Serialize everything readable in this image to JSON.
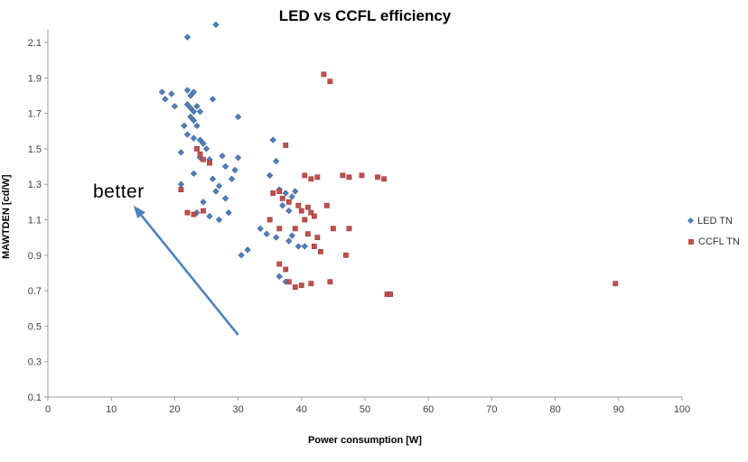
{
  "chart_data": {
    "type": "scatter",
    "title": "LED vs CCFL efficiency",
    "xlabel": "Power consumption [W]",
    "ylabel": "MAWTDEN [cd/W]",
    "xlim": [
      0,
      100
    ],
    "ylim": [
      0.1,
      2.1
    ],
    "x_ticks": [
      0,
      10,
      20,
      30,
      40,
      50,
      60,
      70,
      80,
      90,
      100
    ],
    "y_ticks": [
      0.1,
      0.3,
      0.5,
      0.7,
      0.9,
      1.1,
      1.3,
      1.5,
      1.7,
      1.9,
      2.1
    ],
    "grid": false,
    "legend_position": "right",
    "axis_color": "#9b9b9b",
    "tick_label_color": "#404040",
    "annotation": {
      "text": "better",
      "arrow_from": [
        30,
        0.45
      ],
      "arrow_to": [
        13.5,
        1.18
      ],
      "color": "#4f81bd"
    },
    "series": [
      {
        "name": "LED TN",
        "marker": "diamond",
        "color": "#4f81bd",
        "edge_color": "#385d8a",
        "points": [
          [
            26.5,
            2.2
          ],
          [
            22,
            2.13
          ],
          [
            18,
            1.82
          ],
          [
            18.5,
            1.78
          ],
          [
            19.5,
            1.81
          ],
          [
            20,
            1.74
          ],
          [
            22,
            1.83
          ],
          [
            22.5,
            1.8
          ],
          [
            23,
            1.82
          ],
          [
            26,
            1.78
          ],
          [
            22,
            1.75
          ],
          [
            22.5,
            1.73
          ],
          [
            23,
            1.71
          ],
          [
            23.5,
            1.74
          ],
          [
            24,
            1.71
          ],
          [
            22.5,
            1.68
          ],
          [
            23,
            1.66
          ],
          [
            21.5,
            1.63
          ],
          [
            23.5,
            1.63
          ],
          [
            30,
            1.68
          ],
          [
            22,
            1.58
          ],
          [
            23,
            1.56
          ],
          [
            24,
            1.55
          ],
          [
            24.5,
            1.53
          ],
          [
            21,
            1.48
          ],
          [
            25,
            1.5
          ],
          [
            25.5,
            1.44
          ],
          [
            24,
            1.45
          ],
          [
            27.5,
            1.46
          ],
          [
            23,
            1.36
          ],
          [
            26,
            1.33
          ],
          [
            29,
            1.33
          ],
          [
            28,
            1.4
          ],
          [
            30,
            1.45
          ],
          [
            29.5,
            1.38
          ],
          [
            26.5,
            1.26
          ],
          [
            27,
            1.29
          ],
          [
            21,
            1.3
          ],
          [
            24.5,
            1.2
          ],
          [
            23.5,
            1.14
          ],
          [
            25.5,
            1.12
          ],
          [
            27,
            1.1
          ],
          [
            28.5,
            1.14
          ],
          [
            28,
            1.22
          ],
          [
            35.5,
            1.55
          ],
          [
            36,
            1.43
          ],
          [
            35,
            1.35
          ],
          [
            36.5,
            1.27
          ],
          [
            37.5,
            1.25
          ],
          [
            38.5,
            1.23
          ],
          [
            37,
            1.18
          ],
          [
            38,
            1.15
          ],
          [
            39,
            1.26
          ],
          [
            33.5,
            1.05
          ],
          [
            34.5,
            1.02
          ],
          [
            36,
            1.0
          ],
          [
            38,
            0.98
          ],
          [
            38.5,
            1.01
          ],
          [
            39.5,
            0.95
          ],
          [
            40.5,
            0.95
          ],
          [
            31.5,
            0.93
          ],
          [
            30.5,
            0.9
          ],
          [
            36.5,
            0.78
          ],
          [
            37.5,
            0.75
          ]
        ]
      },
      {
        "name": "CCFL TN",
        "marker": "square",
        "color": "#c0504d",
        "edge_color": "#953735",
        "points": [
          [
            43.5,
            1.92
          ],
          [
            44.5,
            1.88
          ],
          [
            37.5,
            1.52
          ],
          [
            23.5,
            1.5
          ],
          [
            24,
            1.47
          ],
          [
            24.5,
            1.44
          ],
          [
            25.5,
            1.42
          ],
          [
            40.5,
            1.35
          ],
          [
            41.5,
            1.33
          ],
          [
            42.5,
            1.34
          ],
          [
            46.5,
            1.35
          ],
          [
            47.5,
            1.34
          ],
          [
            49.5,
            1.35
          ],
          [
            52,
            1.34
          ],
          [
            53,
            1.33
          ],
          [
            21,
            1.27
          ],
          [
            22,
            1.14
          ],
          [
            23,
            1.13
          ],
          [
            24.5,
            1.15
          ],
          [
            35.5,
            1.25
          ],
          [
            36.5,
            1.26
          ],
          [
            37,
            1.22
          ],
          [
            38,
            1.2
          ],
          [
            39.5,
            1.18
          ],
          [
            40,
            1.15
          ],
          [
            41,
            1.17
          ],
          [
            41.5,
            1.14
          ],
          [
            42,
            1.12
          ],
          [
            40.5,
            1.1
          ],
          [
            44,
            1.18
          ],
          [
            39,
            1.05
          ],
          [
            41,
            1.02
          ],
          [
            42.5,
            1.0
          ],
          [
            36.5,
            1.05
          ],
          [
            35,
            1.1
          ],
          [
            45,
            1.05
          ],
          [
            47.5,
            1.05
          ],
          [
            42,
            0.95
          ],
          [
            43,
            0.92
          ],
          [
            47,
            0.9
          ],
          [
            36.5,
            0.85
          ],
          [
            37.5,
            0.82
          ],
          [
            38,
            0.75
          ],
          [
            39,
            0.72
          ],
          [
            40,
            0.73
          ],
          [
            41.5,
            0.74
          ],
          [
            44.5,
            0.75
          ],
          [
            53.5,
            0.68
          ],
          [
            54,
            0.68
          ],
          [
            89.5,
            0.74
          ]
        ]
      }
    ]
  }
}
